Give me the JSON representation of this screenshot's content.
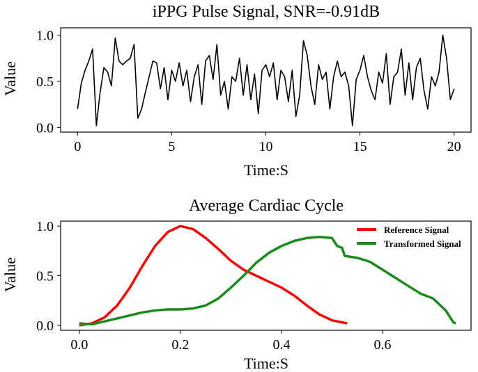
{
  "chart_data": [
    {
      "type": "line",
      "title": "iPPG Pulse Signal, SNR=-0.91dB",
      "xlabel": "Time:S",
      "ylabel": "Value",
      "xlim": [
        -0.9,
        20.9
      ],
      "ylim": [
        -0.05,
        1.08
      ],
      "xticks": [
        "0",
        "5",
        "10",
        "15",
        "20"
      ],
      "yticks": [
        "0.0",
        "0.5",
        "1.0"
      ],
      "grid": false,
      "series": [
        {
          "color": "#000000",
          "x_step": 0.2,
          "values": [
            0.2,
            0.48,
            0.62,
            0.72,
            0.85,
            0.02,
            0.38,
            0.65,
            0.6,
            0.45,
            0.97,
            0.72,
            0.68,
            0.72,
            0.75,
            0.9,
            0.1,
            0.2,
            0.38,
            0.55,
            0.72,
            0.7,
            0.42,
            0.65,
            0.3,
            0.62,
            0.5,
            0.7,
            0.45,
            0.62,
            0.28,
            0.55,
            0.68,
            0.25,
            0.72,
            0.78,
            0.52,
            0.9,
            0.35,
            0.5,
            0.2,
            0.55,
            0.5,
            0.75,
            0.35,
            0.68,
            0.3,
            0.58,
            0.15,
            0.62,
            0.68,
            0.55,
            0.7,
            0.3,
            0.62,
            0.55,
            0.28,
            0.62,
            0.12,
            0.35,
            0.94,
            0.78,
            0.45,
            0.25,
            0.68,
            0.52,
            0.6,
            0.2,
            0.55,
            0.72,
            0.55,
            0.6,
            0.45,
            0.02,
            0.52,
            0.62,
            0.78,
            0.55,
            0.4,
            0.3,
            0.6,
            0.48,
            0.8,
            0.25,
            0.55,
            0.6,
            0.85,
            0.35,
            0.7,
            0.3,
            0.65,
            0.75,
            0.4,
            0.2,
            0.55,
            0.45,
            0.6,
            1.0,
            0.75,
            0.3,
            0.42
          ]
        }
      ]
    },
    {
      "type": "line",
      "title": "Average Cardiac Cycle",
      "xlabel": "Time:S",
      "ylabel": "Value",
      "xlim": [
        -0.037,
        0.775
      ],
      "ylim": [
        -0.05,
        1.05
      ],
      "xticks": [
        "0.0",
        "0.2",
        "0.4",
        "0.6"
      ],
      "yticks": [
        "0.0",
        "0.5",
        "1.0"
      ],
      "grid": false,
      "legend": "top-right",
      "series": [
        {
          "name": "Reference Signal",
          "color": "#ff0000",
          "x": [
            0,
            0.025,
            0.05,
            0.075,
            0.1,
            0.125,
            0.15,
            0.175,
            0.2,
            0.225,
            0.25,
            0.275,
            0.3,
            0.325,
            0.35,
            0.375,
            0.4,
            0.425,
            0.45,
            0.475,
            0.5,
            0.53
          ],
          "y": [
            0.0,
            0.02,
            0.08,
            0.2,
            0.38,
            0.6,
            0.8,
            0.94,
            1.0,
            0.97,
            0.88,
            0.77,
            0.65,
            0.56,
            0.5,
            0.44,
            0.38,
            0.3,
            0.2,
            0.11,
            0.05,
            0.02
          ]
        },
        {
          "name": "Transformed Signal",
          "color": "#1a8a1a",
          "x": [
            0,
            0.025,
            0.05,
            0.075,
            0.1,
            0.125,
            0.15,
            0.175,
            0.2,
            0.225,
            0.25,
            0.275,
            0.3,
            0.325,
            0.35,
            0.375,
            0.4,
            0.425,
            0.45,
            0.475,
            0.5,
            0.51,
            0.52,
            0.525,
            0.55,
            0.575,
            0.6,
            0.625,
            0.65,
            0.675,
            0.7,
            0.725,
            0.74,
            0.745
          ],
          "y": [
            0.02,
            0.01,
            0.04,
            0.07,
            0.1,
            0.13,
            0.15,
            0.16,
            0.16,
            0.17,
            0.2,
            0.27,
            0.38,
            0.5,
            0.63,
            0.73,
            0.8,
            0.85,
            0.88,
            0.89,
            0.88,
            0.8,
            0.78,
            0.7,
            0.68,
            0.64,
            0.56,
            0.48,
            0.4,
            0.32,
            0.27,
            0.15,
            0.03,
            0.02
          ]
        }
      ]
    }
  ]
}
